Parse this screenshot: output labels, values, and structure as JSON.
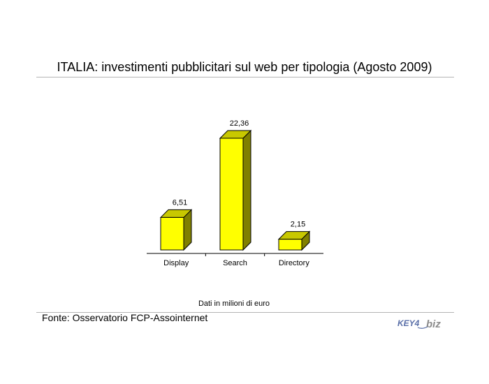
{
  "title": "ITALIA: investimenti pubblicitari sul web per tipologia (Agosto 2009)",
  "note": "Dati in milioni di euro",
  "source": "Fonte: Osservatorio FCP-Assointernet",
  "logo": {
    "text_main": "KEY4",
    "text_accent": "biz"
  },
  "colors": {
    "bar_front": "#ffff00",
    "bar_side": "#808000",
    "bar_top": "#c8c800",
    "outline": "#000000",
    "logo_blue": "#5a6fa8",
    "logo_gray": "#8c8c8c"
  },
  "chart_data": {
    "type": "bar",
    "categories": [
      "Display",
      "Search",
      "Directory"
    ],
    "values": [
      6.51,
      22.36,
      2.15
    ],
    "value_labels": [
      "6,51",
      "22,36",
      "2,15"
    ],
    "title": "",
    "xlabel": "",
    "ylabel": "",
    "ylim": [
      0,
      22.36
    ],
    "grid": false,
    "style": "3d"
  }
}
